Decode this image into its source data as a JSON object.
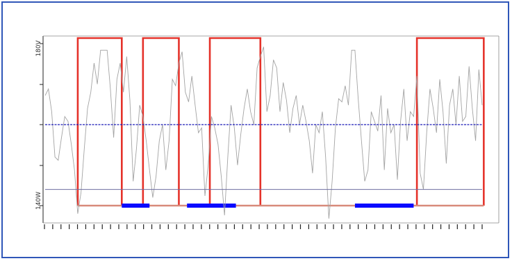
{
  "chart_data": {
    "type": "line",
    "title": "",
    "xlabel": "",
    "ylabel": "",
    "y_top_label": "180V",
    "y_bottom_label": "140W",
    "ylim": [
      0,
      100
    ],
    "grid": false,
    "baseline": 50,
    "lower_reference": 10,
    "x_ticks": 54,
    "series": [
      {
        "x": [
          0,
          2,
          4,
          6,
          8,
          10,
          12,
          14,
          16,
          18,
          20,
          22,
          24,
          26,
          28,
          30,
          32,
          34,
          36,
          38,
          40,
          42,
          44,
          46,
          48,
          50,
          52,
          54,
          56,
          58,
          60,
          62,
          64,
          66,
          68,
          70,
          72,
          74,
          76,
          78,
          80,
          82,
          84,
          86,
          88,
          90,
          92,
          94,
          96,
          98,
          100,
          102,
          104,
          106,
          108,
          110,
          112,
          114,
          116,
          118,
          120,
          122,
          124,
          126,
          128,
          130,
          132,
          134,
          136,
          138,
          140,
          142,
          144,
          146,
          148,
          150,
          152,
          154,
          156,
          158,
          160,
          162,
          164,
          166,
          168,
          170,
          172,
          174,
          176,
          178,
          180,
          182,
          184,
          186,
          188,
          190,
          192,
          194,
          196,
          198,
          200,
          202,
          204,
          206,
          208,
          210,
          212,
          214,
          216,
          218,
          220,
          222,
          224,
          226,
          228,
          230,
          232,
          234,
          236,
          238,
          240,
          242,
          244,
          246,
          248,
          250,
          252,
          254,
          256,
          258,
          260,
          262,
          264,
          266,
          268
        ],
        "values": [
          68,
          72,
          58,
          30,
          28,
          42,
          55,
          52,
          38,
          22,
          -5,
          8,
          35,
          60,
          70,
          88,
          75,
          96,
          96,
          96,
          72,
          42,
          78,
          88,
          70,
          92,
          65,
          15,
          35,
          62,
          55,
          40,
          22,
          5,
          18,
          40,
          50,
          22,
          40,
          78,
          74,
          88,
          95,
          70,
          64,
          80,
          62,
          45,
          48,
          6,
          25,
          55,
          48,
          38,
          18,
          -6,
          30,
          62,
          48,
          25,
          44,
          60,
          72,
          58,
          50,
          85,
          92,
          98,
          58,
          68,
          90,
          85,
          58,
          76,
          65,
          45,
          60,
          68,
          50,
          62,
          52,
          40,
          20,
          50,
          45,
          58,
          30,
          -8,
          15,
          48,
          66,
          64,
          74,
          62,
          96,
          96,
          66,
          40,
          15,
          22,
          58,
          52,
          46,
          68,
          22,
          60,
          45,
          50,
          16,
          52,
          72,
          40,
          58,
          55,
          80,
          20,
          10,
          45,
          72,
          60,
          45,
          78,
          58,
          26,
          62,
          72,
          50,
          80,
          52,
          55,
          86,
          60,
          40,
          84,
          62
        ]
      }
    ],
    "on_periods": [
      [
        20,
        47
      ],
      [
        60,
        82
      ],
      [
        101,
        132
      ],
      [
        228,
        269
      ]
    ],
    "off_periods": [
      [
        47,
        64
      ],
      [
        87,
        117
      ],
      [
        190,
        226
      ]
    ],
    "colors": {
      "series": "#a3a3a3",
      "baseline": "#1a1ab8",
      "lower_reference": "#6d6da0",
      "on_period": "#e5322a",
      "on_period_floor": "#d88a7a",
      "off_period": "#0a0aff",
      "frame": "#2f56b8",
      "axis": "#222222"
    }
  }
}
